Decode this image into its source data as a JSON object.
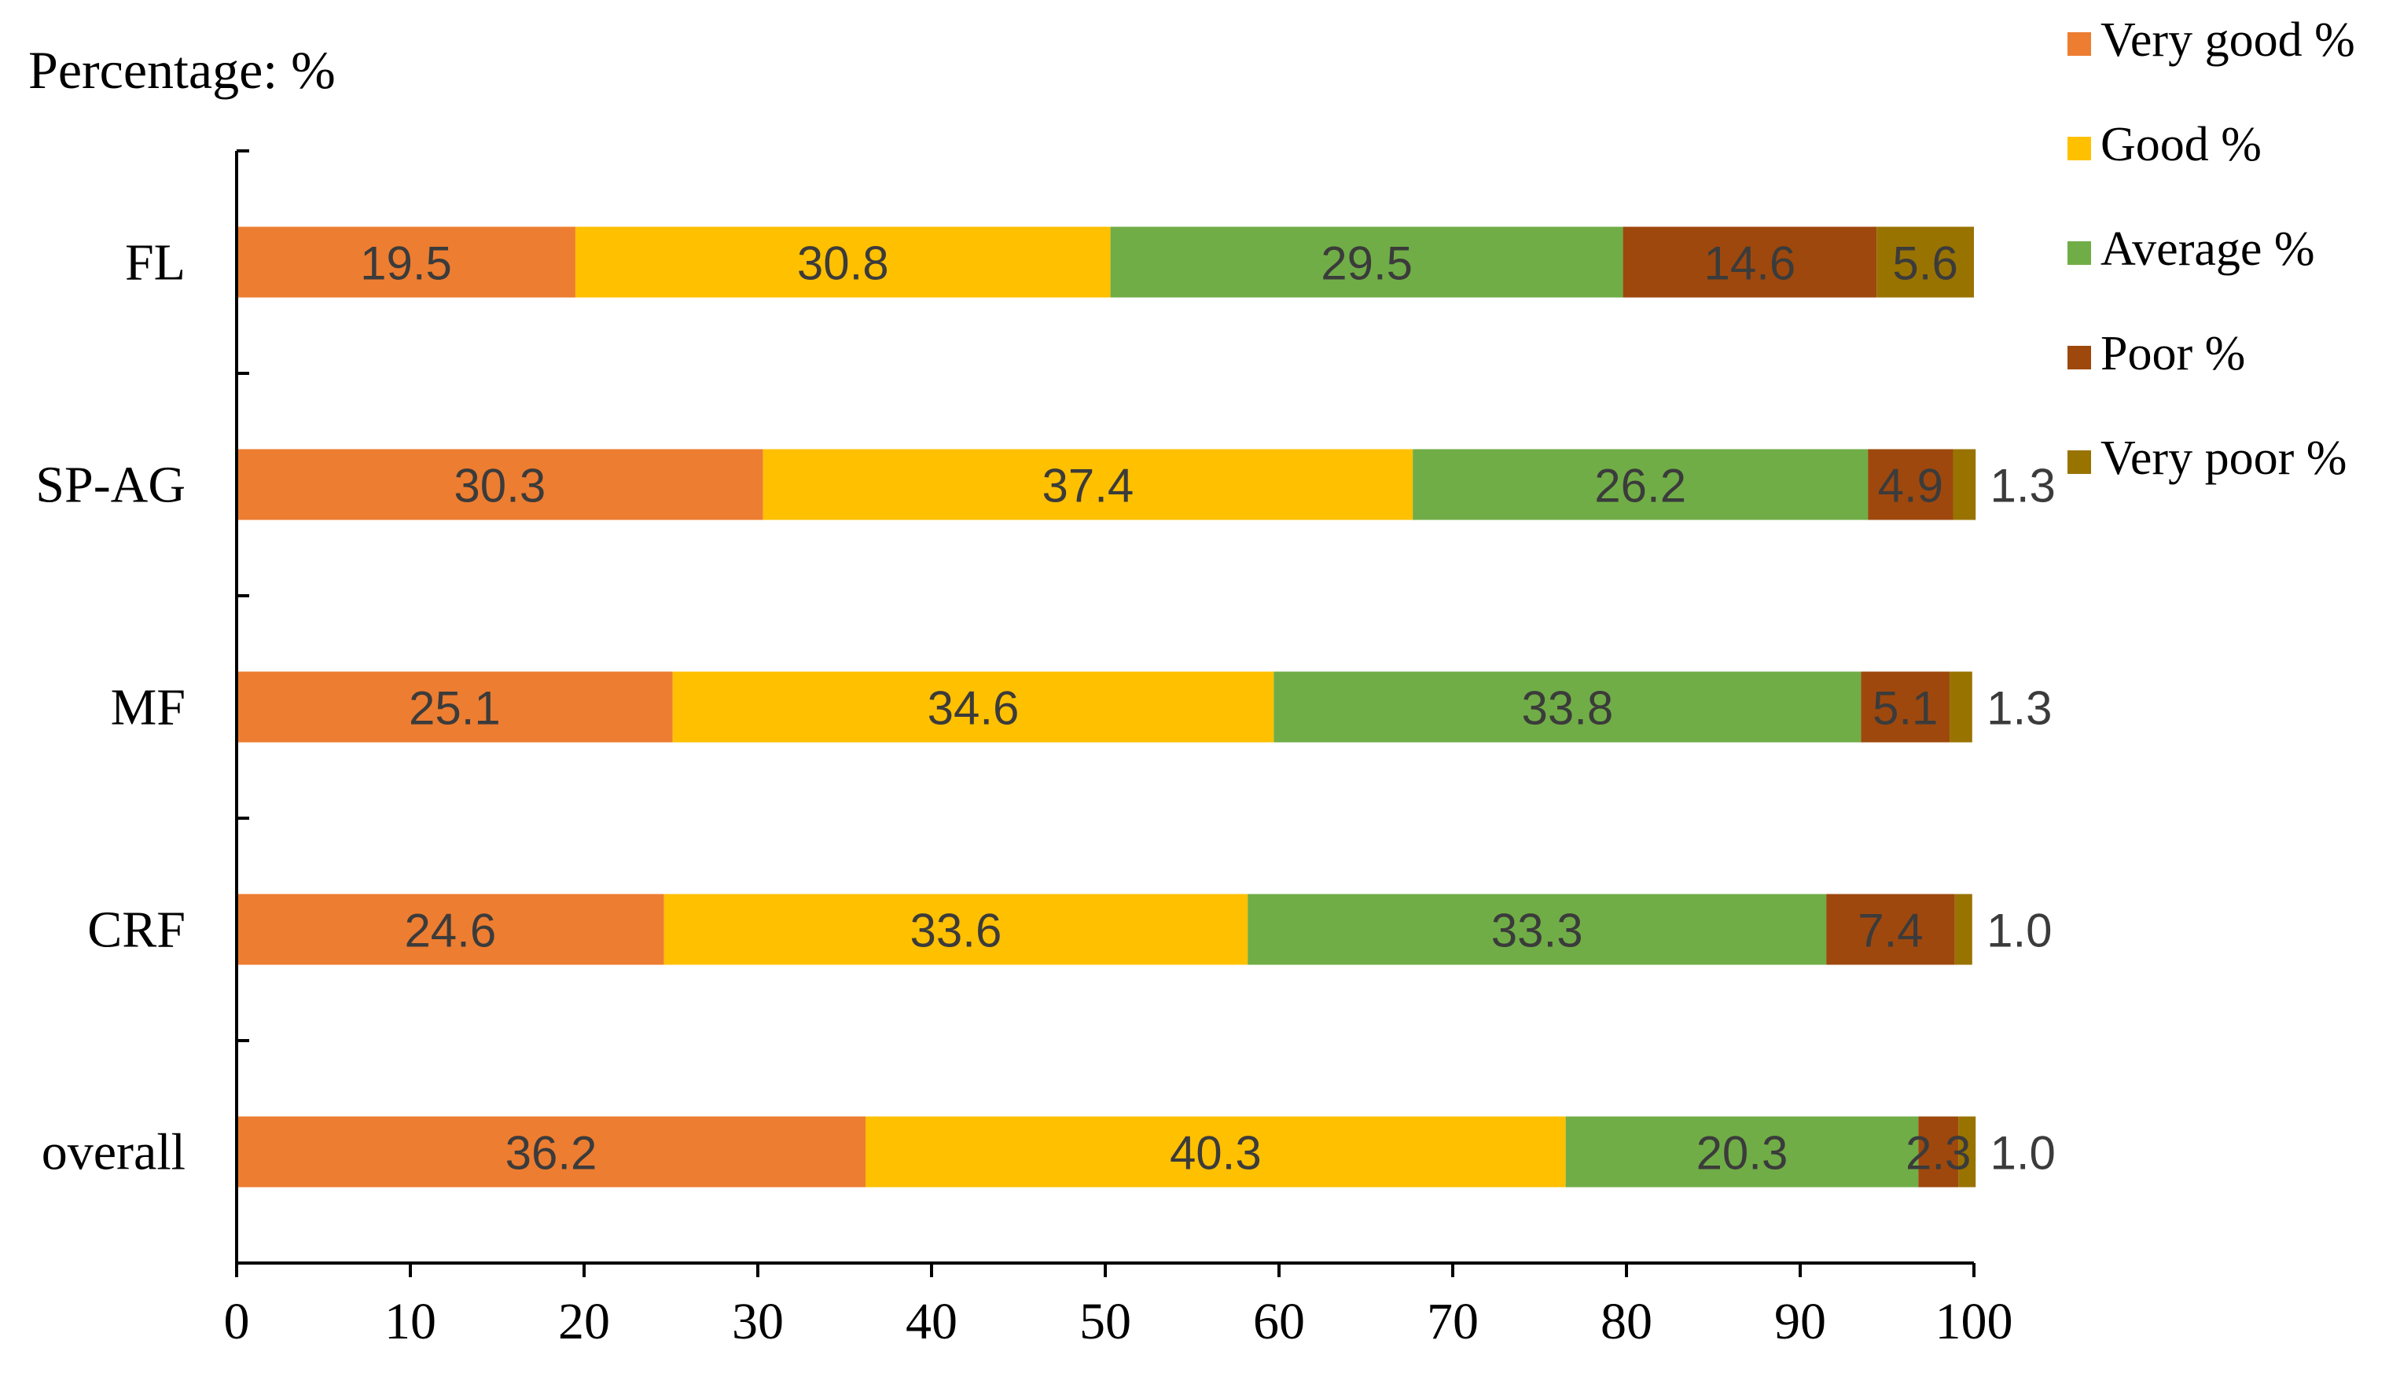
{
  "chart_data": {
    "type": "bar",
    "orientation": "horizontal",
    "stacked": true,
    "title": "",
    "ylabel_title": "Percentage: %",
    "xlabel": "",
    "xlim": [
      0,
      100
    ],
    "xticks": [
      0,
      10,
      20,
      30,
      40,
      50,
      60,
      70,
      80,
      90,
      100
    ],
    "categories": [
      "FL",
      "SP-AG",
      "MF",
      "CRF",
      "overall"
    ],
    "series": [
      {
        "name": "Very good %",
        "color": "#ED7D31",
        "values": [
          19.5,
          30.3,
          25.1,
          24.6,
          36.2
        ],
        "labels": [
          "19.5",
          "30.3",
          "25.1",
          "24.6",
          "36.2"
        ]
      },
      {
        "name": "Good %",
        "color": "#FFC000",
        "values": [
          30.8,
          37.4,
          34.6,
          33.6,
          40.3
        ],
        "labels": [
          "30.8",
          "37.4",
          "34.6",
          "33.6",
          "40.3"
        ]
      },
      {
        "name": "Average %",
        "color": "#70AD47",
        "values": [
          29.5,
          26.2,
          33.8,
          33.3,
          20.3
        ],
        "labels": [
          "29.5",
          "26.2",
          "33.8",
          "33.3",
          "20.3"
        ]
      },
      {
        "name": "Poor %",
        "color": "#9E480E",
        "values": [
          14.6,
          4.9,
          5.1,
          7.4,
          2.3
        ],
        "labels": [
          "14.6",
          "4.9",
          "5.1",
          "7.4",
          "2.3"
        ]
      },
      {
        "name": "Very poor %",
        "color": "#997300",
        "values": [
          5.6,
          1.3,
          1.3,
          1.0,
          1.0
        ],
        "labels": [
          "5.6",
          "1.3",
          "1.3",
          "1.0",
          "1.0"
        ]
      }
    ],
    "legend_position": "top-right",
    "grid": false
  }
}
